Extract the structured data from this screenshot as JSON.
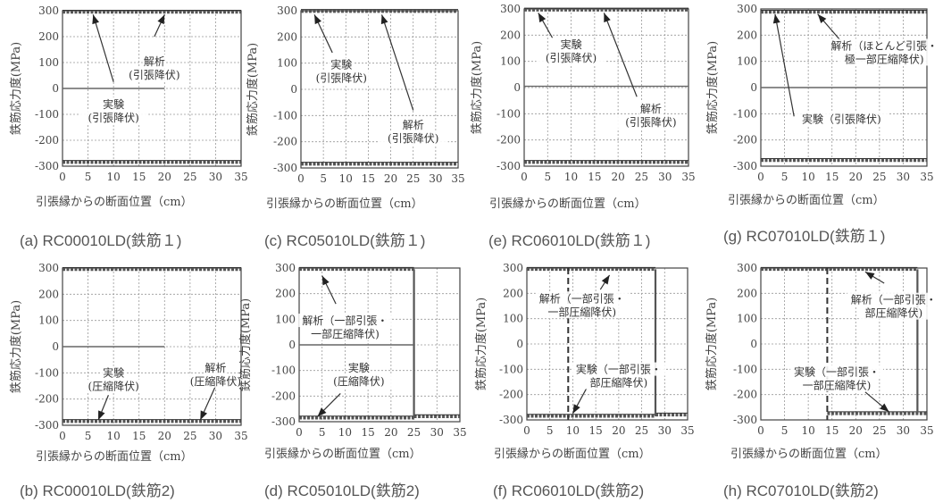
{
  "figure": {
    "x_axis_label": "引張縁からの断面位置（cm）",
    "y_axis_label": "鉄筋応力度(MPa)",
    "x_ticks": [
      "0",
      "5",
      "10",
      "15",
      "20",
      "25",
      "30",
      "35"
    ],
    "y_ticks": [
      "300",
      "200",
      "100",
      "0",
      "-100",
      "-200",
      "-300"
    ]
  },
  "chart_data": [
    {
      "type": "line",
      "caption": "(a) RC00010LD(鉄筋１)",
      "xlim": [
        0,
        35
      ],
      "ylim": [
        -300,
        300
      ],
      "grid": true,
      "flat_lines": [
        {
          "y": 295
        },
        {
          "y": -285
        }
      ],
      "series": [
        {
          "x": [
            0,
            20
          ],
          "y": [
            0,
            0
          ]
        }
      ],
      "annotations": [
        {
          "lines": [
            "解析",
            "(引張降伏)"
          ],
          "x": 18,
          "y": 90,
          "arrow": [
            [
              18,
              200
            ],
            [
              20,
              285
            ]
          ]
        },
        {
          "lines": [
            "実験",
            "(引張降伏)"
          ],
          "x": 10,
          "y": -75,
          "arrow": [
            [
              10,
              25
            ],
            [
              6,
              285
            ]
          ]
        }
      ]
    },
    {
      "type": "line",
      "caption": "(c) RC05010LD(鉄筋１)",
      "xlim": [
        0,
        35
      ],
      "ylim": [
        -300,
        300
      ],
      "grid": true,
      "flat_lines": [
        {
          "y": 298
        },
        {
          "y": -285
        }
      ],
      "series": [],
      "annotations": [
        {
          "lines": [
            "実験",
            "(引張降伏)"
          ],
          "x": 9,
          "y": 80,
          "arrow": [
            [
              7,
              140
            ],
            [
              3,
              285
            ]
          ]
        },
        {
          "lines": [
            "解析",
            "(引張降伏)"
          ],
          "x": 25,
          "y": -150,
          "arrow": [
            [
              25,
              -80
            ],
            [
              18,
              285
            ]
          ]
        }
      ]
    },
    {
      "type": "line",
      "caption": "(e) RC06010LD(鉄筋１)",
      "xlim": [
        0,
        35
      ],
      "ylim": [
        -300,
        300
      ],
      "grid": true,
      "flat_lines": [
        {
          "y": 296
        },
        {
          "y": -285
        }
      ],
      "series": [
        {
          "x": [
            0,
            35
          ],
          "y": [
            5,
            5
          ]
        }
      ],
      "annotations": [
        {
          "lines": [
            "実験",
            "(引張降伏)"
          ],
          "x": 10,
          "y": 150,
          "arrow": [
            [
              6,
              190
            ],
            [
              3,
              285
            ]
          ]
        },
        {
          "lines": [
            "解析",
            "(引張降伏)"
          ],
          "x": 27,
          "y": -95,
          "arrow": [
            [
              24,
              -35
            ],
            [
              17,
              285
            ]
          ]
        }
      ]
    },
    {
      "type": "line",
      "caption": "(g) RC07010LD(鉄筋１)",
      "xlim": [
        0,
        35
      ],
      "ylim": [
        -300,
        300
      ],
      "grid": true,
      "flat_lines": [
        {
          "y": 288
        },
        {
          "y": -278
        }
      ],
      "series": [
        {
          "x": [
            0,
            35
          ],
          "y": [
            0,
            0
          ]
        }
      ],
      "annotations": [
        {
          "lines": [
            "解析（ほとんど引張・",
            "極一部圧縮降伏)"
          ],
          "x": 26,
          "y": 145,
          "arrow": [
            [
              17,
              175
            ],
            [
              12,
              280
            ]
          ]
        },
        {
          "lines": [
            "実験（引張降伏)"
          ],
          "x": 17,
          "y": -135,
          "arrow": [
            [
              7,
              -110
            ],
            [
              3,
              280
            ]
          ]
        }
      ]
    },
    {
      "type": "line",
      "caption": "(b) RC00010LD(鉄筋2)",
      "xlim": [
        0,
        35
      ],
      "ylim": [
        -300,
        300
      ],
      "grid": true,
      "flat_lines": [
        {
          "y": 295
        },
        {
          "y": -285
        }
      ],
      "series": [
        {
          "x": [
            0,
            20
          ],
          "y": [
            0,
            0
          ]
        }
      ],
      "annotations": [
        {
          "lines": [
            "実験",
            "(圧縮降伏)"
          ],
          "x": 10,
          "y": -115,
          "arrow": [
            [
              9,
              -185
            ],
            [
              7,
              -280
            ]
          ]
        },
        {
          "lines": [
            "解析",
            "(圧縮降伏)"
          ],
          "x": 30,
          "y": -95,
          "arrow": [
            [
              30,
              -150
            ],
            [
              27,
              -280
            ]
          ]
        }
      ]
    },
    {
      "type": "line",
      "caption": "(d) RC05010LD(鉄筋2)",
      "xlim": [
        0,
        35
      ],
      "ylim": [
        -300,
        300
      ],
      "grid": true,
      "flat_lines": [
        {
          "y": 295,
          "x": [
            0,
            25
          ]
        },
        {
          "y": -285,
          "x": [
            0,
            25
          ]
        },
        {
          "y": -280,
          "x": [
            25,
            35
          ]
        }
      ],
      "vlines": [
        {
          "x": 25,
          "y": [
            -285,
            295
          ],
          "style": "solid"
        }
      ],
      "series": [
        {
          "x": [
            0,
            25
          ],
          "y": [
            0,
            0
          ]
        }
      ],
      "annotations": [
        {
          "lines": [
            "解析（一部引張・",
            "一部圧縮降伏)"
          ],
          "x": 10,
          "y": 80,
          "arrow": [
            [
              8,
              160
            ],
            [
              5,
              270
            ]
          ]
        },
        {
          "lines": [
            "実験",
            "(圧縮降伏)"
          ],
          "x": 13,
          "y": -105,
          "arrow": [
            [
              9,
              -190
            ],
            [
              4,
              -280
            ]
          ]
        }
      ]
    },
    {
      "type": "line",
      "caption": "(f) RC06010LD(鉄筋2)",
      "xlim": [
        0,
        35
      ],
      "ylim": [
        -300,
        300
      ],
      "grid": true,
      "flat_lines": [
        {
          "y": 295,
          "x": [
            0,
            28
          ]
        },
        {
          "y": -285,
          "x": [
            0,
            28
          ]
        },
        {
          "y": -280,
          "x": [
            28,
            35
          ]
        }
      ],
      "vlines": [
        {
          "x": 9,
          "y": [
            -300,
            300
          ],
          "style": "dashed"
        },
        {
          "x": 28,
          "y": [
            -285,
            295
          ],
          "style": "solid"
        }
      ],
      "series": [],
      "annotations": [
        {
          "lines": [
            "解析（一部引張・",
            "一部圧縮降伏)"
          ],
          "x": 12,
          "y": 165,
          "arrow": [
            [
              16,
              215
            ],
            [
              18,
              272
            ]
          ]
        },
        {
          "lines": [
            "実験（一部引張・",
            "部圧縮降伏)"
          ],
          "x": 20,
          "y": -115,
          "arrow": [
            [
              13,
              -175
            ],
            [
              10,
              -275
            ]
          ]
        }
      ]
    },
    {
      "type": "line",
      "caption": "(h) RC07010LD(鉄筋2)",
      "xlim": [
        0,
        35
      ],
      "ylim": [
        -300,
        300
      ],
      "grid": true,
      "flat_lines": [
        {
          "y": 295,
          "x": [
            0,
            33
          ]
        },
        {
          "y": -275,
          "x": [
            14,
            35
          ]
        }
      ],
      "vlines": [
        {
          "x": 14,
          "y": [
            -300,
            300
          ],
          "style": "dashed"
        },
        {
          "x": 33,
          "y": [
            -275,
            295
          ],
          "style": "solid"
        }
      ],
      "series": [],
      "annotations": [
        {
          "lines": [
            "解析（一部引張・",
            "部圧縮降伏)"
          ],
          "x": 28,
          "y": 160,
          "arrow": [
            [
              26,
              240
            ],
            [
              22,
              285
            ]
          ]
        },
        {
          "lines": [
            "実験（一部引張・",
            "一部圧縮降伏)"
          ],
          "x": 16,
          "y": -125,
          "arrow": [
            [
              22,
              -190
            ],
            [
              27,
              -268
            ]
          ]
        }
      ]
    }
  ]
}
